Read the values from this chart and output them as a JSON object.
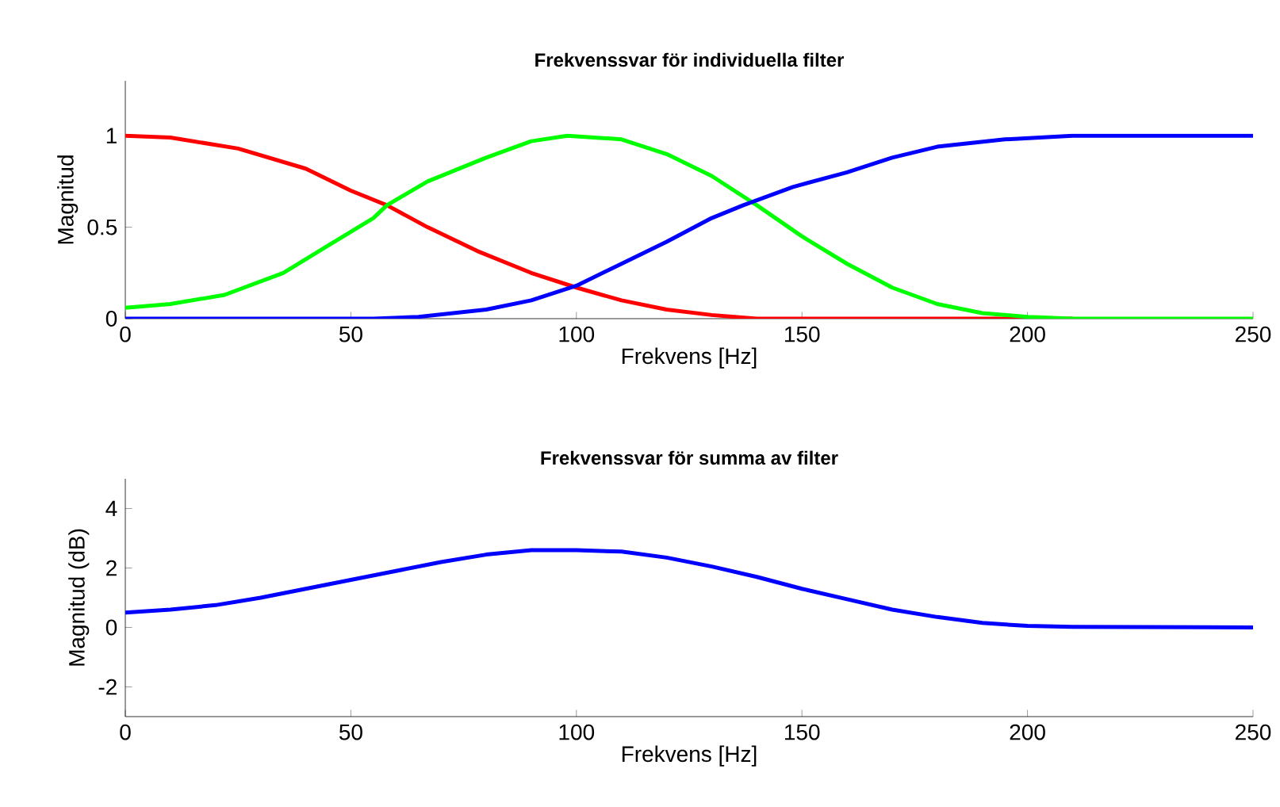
{
  "chart_data": [
    {
      "type": "line",
      "title": "Frekvenssvar för individuella filter",
      "xlabel": "Frekvens [Hz]",
      "ylabel": "Magnitud",
      "xlim": [
        0,
        250
      ],
      "ylim": [
        0,
        1.3
      ],
      "xticks": [
        0,
        50,
        100,
        150,
        200,
        250
      ],
      "yticks": [
        0,
        0.5,
        1
      ],
      "series": [
        {
          "color": "#ff0000",
          "x": [
            0,
            10,
            25,
            40,
            50,
            58,
            67,
            78,
            90,
            100,
            110,
            120,
            130,
            140,
            210
          ],
          "values": [
            1,
            0.99,
            0.93,
            0.82,
            0.7,
            0.62,
            0.5,
            0.37,
            0.25,
            0.17,
            0.1,
            0.05,
            0.02,
            0,
            0
          ]
        },
        {
          "color": "#00ff00",
          "x": [
            0,
            10,
            22,
            35,
            45,
            55,
            58,
            67,
            80,
            90,
            98,
            110,
            120,
            130,
            140,
            150,
            160,
            170,
            180,
            190,
            200,
            210,
            250
          ],
          "values": [
            0.06,
            0.08,
            0.13,
            0.25,
            0.4,
            0.55,
            0.62,
            0.75,
            0.88,
            0.97,
            1,
            0.98,
            0.9,
            0.78,
            0.62,
            0.45,
            0.3,
            0.17,
            0.08,
            0.03,
            0.01,
            0,
            0
          ]
        },
        {
          "color": "#0000ff",
          "x": [
            0,
            55,
            65,
            80,
            90,
            100,
            110,
            120,
            130,
            137,
            148,
            160,
            170,
            180,
            195,
            210,
            250
          ],
          "values": [
            0,
            0,
            0.01,
            0.05,
            0.1,
            0.18,
            0.3,
            0.42,
            0.55,
            0.62,
            0.72,
            0.8,
            0.88,
            0.94,
            0.98,
            1,
            1
          ]
        }
      ]
    },
    {
      "type": "line",
      "title": "Frekvenssvar för summa av filter",
      "xlabel": "Frekvens [Hz]",
      "ylabel": "Magnitud (dB)",
      "xlim": [
        0,
        250
      ],
      "ylim": [
        -3,
        5
      ],
      "xticks": [
        0,
        50,
        100,
        150,
        200,
        250
      ],
      "yticks": [
        -2,
        0,
        2,
        4
      ],
      "series": [
        {
          "color": "#0000ff",
          "x": [
            0,
            10,
            20,
            30,
            40,
            50,
            60,
            70,
            80,
            90,
            100,
            110,
            120,
            130,
            140,
            150,
            160,
            170,
            180,
            190,
            200,
            210,
            250
          ],
          "values": [
            0.5,
            0.6,
            0.75,
            1.0,
            1.3,
            1.6,
            1.9,
            2.2,
            2.45,
            2.6,
            2.6,
            2.55,
            2.35,
            2.05,
            1.7,
            1.3,
            0.95,
            0.6,
            0.35,
            0.15,
            0.05,
            0.02,
            0
          ]
        }
      ]
    }
  ]
}
